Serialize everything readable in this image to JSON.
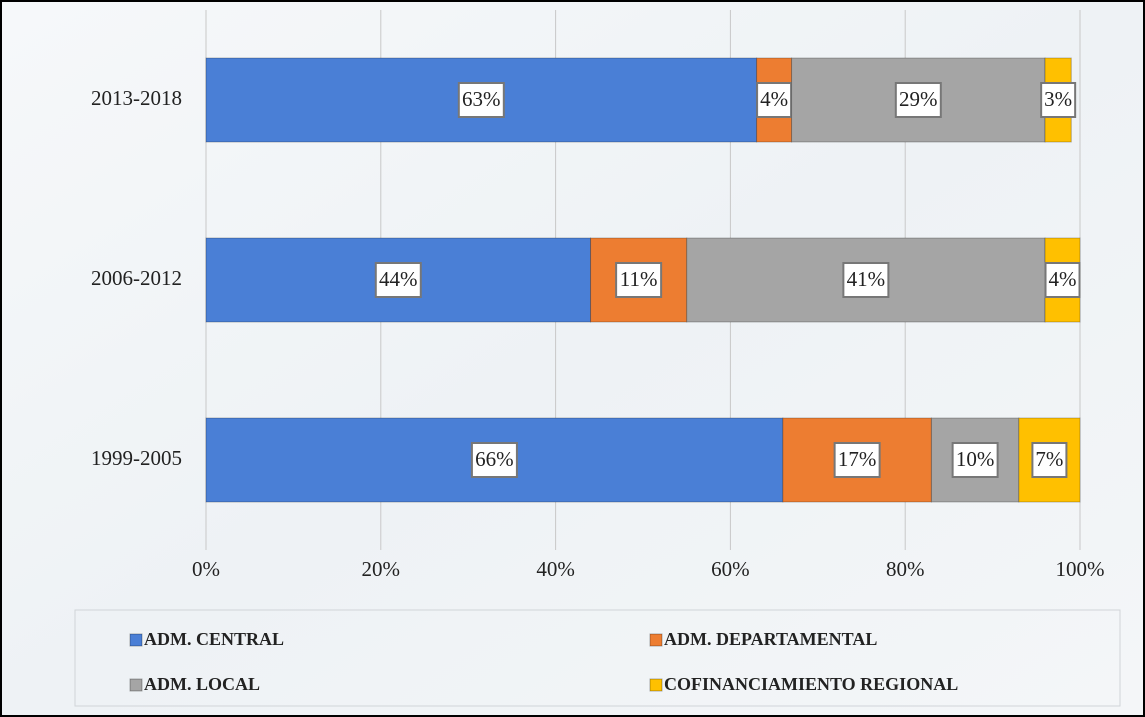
{
  "chart_data": {
    "type": "stacked-barh",
    "categories": [
      "2013-2018",
      "2006-2012",
      "1999-2005"
    ],
    "series": [
      {
        "name": "ADM. CENTRAL",
        "color": "#4a7fd6",
        "values": [
          63,
          44,
          66
        ],
        "value_labels": [
          "63%",
          "44%",
          "66%"
        ]
      },
      {
        "name": "ADM. DEPARTAMENTAL",
        "color": "#ed7d31",
        "values": [
          4,
          11,
          17
        ],
        "value_labels": [
          "4%",
          "11%",
          "17%"
        ]
      },
      {
        "name": "ADM. LOCAL",
        "color": "#a5a5a5",
        "values": [
          29,
          41,
          10
        ],
        "value_labels": [
          "29%",
          "41%",
          "10%"
        ]
      },
      {
        "name": "COFINANCIAMIENTO REGIONAL",
        "color": "#ffc000",
        "values": [
          3,
          4,
          7
        ],
        "value_labels": [
          "3%",
          "4%",
          "7%"
        ]
      }
    ],
    "xlim": [
      0,
      100
    ],
    "xticks": [
      {
        "value": 0,
        "label": "0%"
      },
      {
        "value": 20,
        "label": "20%"
      },
      {
        "value": 40,
        "label": "40%"
      },
      {
        "value": 60,
        "label": "60%"
      },
      {
        "value": 80,
        "label": "80%"
      },
      {
        "value": 100,
        "label": "100%"
      }
    ],
    "grid": true,
    "legend": "bottom"
  }
}
